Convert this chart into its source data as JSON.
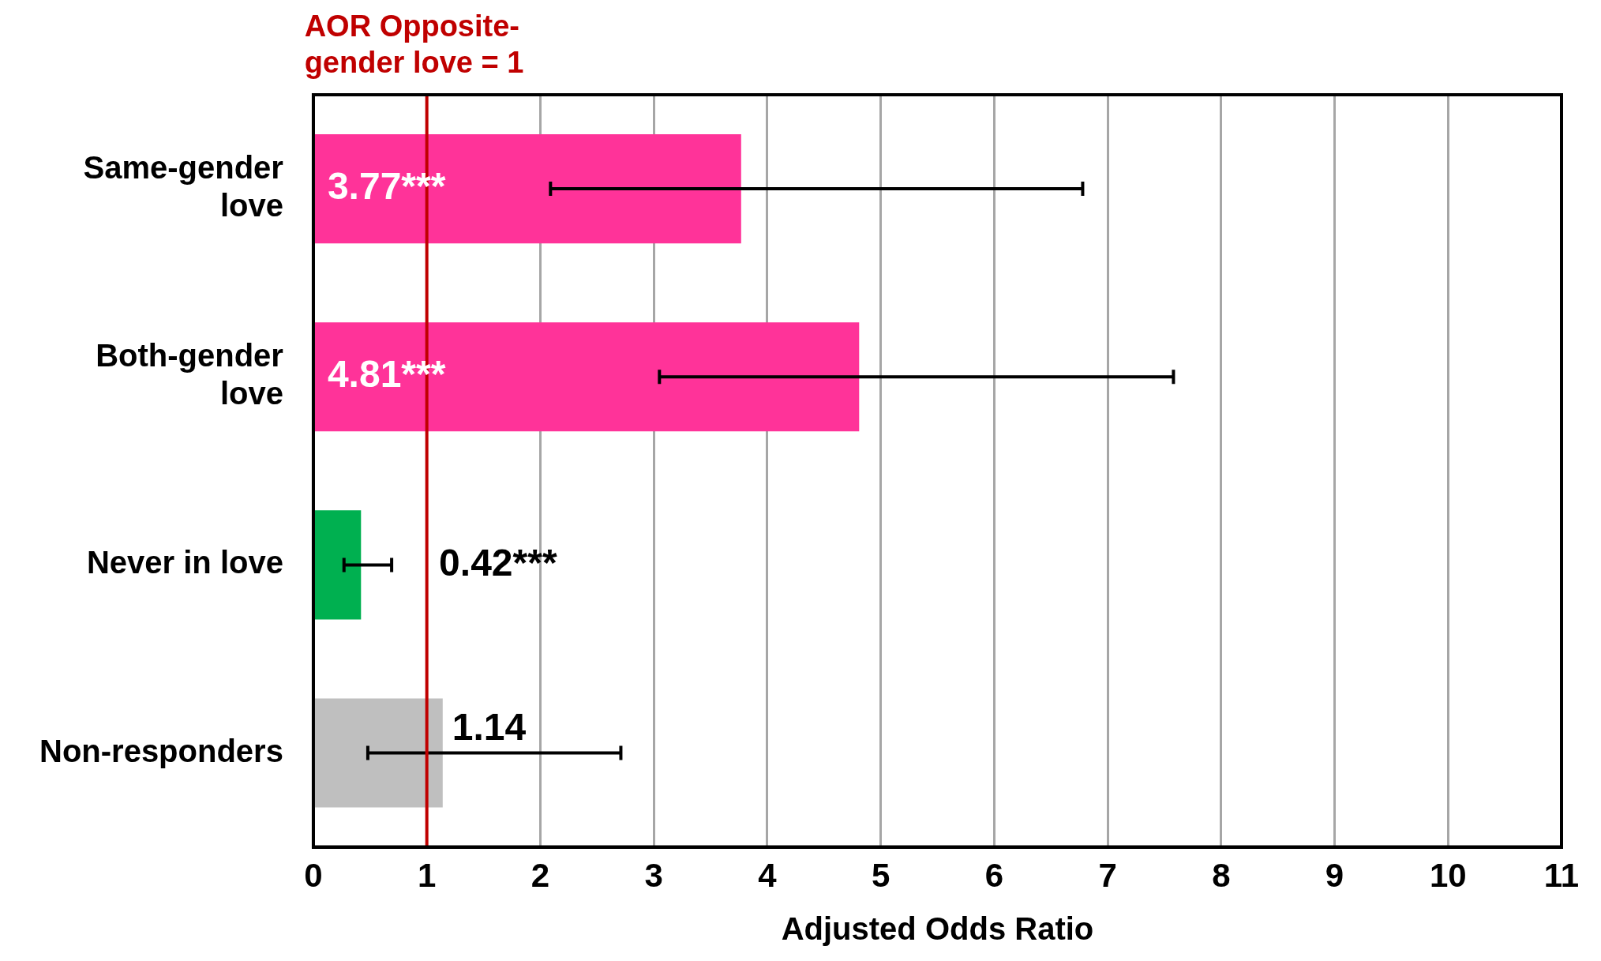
{
  "chart_data": {
    "type": "bar",
    "orientation": "horizontal",
    "xlabel": "Adjusted Odds Ratio",
    "categories": [
      "Same-gender love",
      "Both-gender love",
      "Never in love",
      "Non-responders"
    ],
    "values": [
      3.77,
      4.81,
      0.42,
      1.14
    ],
    "colors": [
      "#ff3399",
      "#ff3399",
      "#00b050",
      "#bfbfbf"
    ],
    "errors": [
      [
        2.09,
        6.78
      ],
      [
        3.05,
        7.58
      ],
      [
        0.27,
        0.69
      ],
      [
        0.48,
        2.71
      ]
    ],
    "value_labels": [
      "3.77***",
      "4.81***",
      "0.42***",
      "1.14"
    ],
    "xlim": [
      0,
      11
    ],
    "xticks": [
      0,
      1,
      2,
      3,
      4,
      5,
      6,
      7,
      8,
      9,
      10,
      11
    ],
    "grid": "x",
    "legend": false,
    "ref_lines": [
      {
        "axis": "x",
        "value": 1,
        "label": "AOR Opposite-gender love = 1",
        "color": "#c00000"
      }
    ]
  }
}
